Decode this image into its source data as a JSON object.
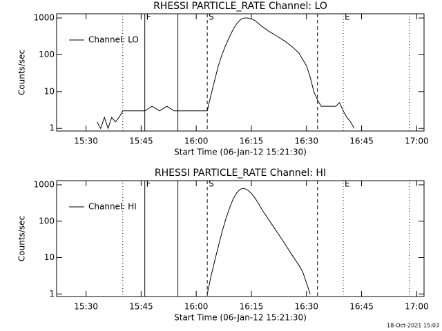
{
  "chart_data": [
    {
      "type": "line",
      "title": "RHESSI PARTICLE_RATE Channel: LO",
      "ylabel": "Counts/sec",
      "xlabel": "Start Time (06-Jan-12 15:21:30)",
      "log_y": true,
      "legend": "upper left",
      "ylim": [
        0.85,
        1300
      ],
      "yticks": [
        1,
        10,
        100,
        1000
      ],
      "xlim": [
        "15:22",
        "17:02"
      ],
      "xticks": [
        "15:30",
        "15:45",
        "16:00",
        "16:15",
        "16:30",
        "16:45",
        "17:00"
      ],
      "vlines": [
        {
          "x": "15:40",
          "style": "dotted"
        },
        {
          "x": "15:46",
          "style": "solid",
          "label": "F"
        },
        {
          "x": "15:55",
          "style": "solid"
        },
        {
          "x": "16:03",
          "style": "dashed",
          "label": "S"
        },
        {
          "x": "16:33",
          "style": "dashed"
        },
        {
          "x": "16:40",
          "style": "dotted",
          "label": "E"
        },
        {
          "x": "16:58",
          "style": "dotted"
        }
      ],
      "x": [
        "15:33",
        "15:34",
        "15:35",
        "15:36",
        "15:37",
        "15:38",
        "15:39",
        "15:40",
        "15:42",
        "15:44",
        "15:46",
        "15:48",
        "15:50",
        "15:52",
        "15:54",
        "15:56",
        "15:58",
        "16:00",
        "16:02",
        "16:03",
        "16:04",
        "16:05",
        "16:06",
        "16:07",
        "16:08",
        "16:09",
        "16:10",
        "16:11",
        "16:12",
        "16:13",
        "16:14",
        "16:15",
        "16:16",
        "16:17",
        "16:18",
        "16:20",
        "16:22",
        "16:24",
        "16:26",
        "16:28",
        "16:30",
        "16:31",
        "16:32",
        "16:33",
        "16:34",
        "16:36",
        "16:38",
        "16:39",
        "16:40",
        "16:41",
        "16:42",
        "16:43"
      ],
      "series": [
        {
          "name": "Channel: LO",
          "color": "#000000",
          "values": [
            1.5,
            1,
            2,
            1,
            2,
            1.5,
            2,
            3,
            3,
            3,
            3,
            4,
            3,
            4,
            3,
            3,
            3,
            3,
            3,
            3,
            8,
            20,
            50,
            100,
            180,
            300,
            480,
            700,
            900,
            1000,
            1000,
            950,
            850,
            700,
            580,
            420,
            320,
            240,
            170,
            110,
            50,
            25,
            10,
            6,
            4,
            4,
            4,
            5,
            3,
            2,
            1.5,
            1
          ]
        }
      ]
    },
    {
      "type": "line",
      "title": "RHESSI PARTICLE_RATE Channel: HI",
      "ylabel": "Counts/sec",
      "xlabel": "Start Time (06-Jan-12 15:21:30)",
      "log_y": true,
      "legend": "upper left",
      "ylim": [
        0.85,
        1300
      ],
      "yticks": [
        1,
        10,
        100,
        1000
      ],
      "xlim": [
        "15:22",
        "17:02"
      ],
      "xticks": [
        "15:30",
        "15:45",
        "16:00",
        "16:15",
        "16:30",
        "16:45",
        "17:00"
      ],
      "vlines": [
        {
          "x": "15:40",
          "style": "dotted"
        },
        {
          "x": "15:46",
          "style": "solid",
          "label": "F"
        },
        {
          "x": "15:55",
          "style": "solid"
        },
        {
          "x": "16:03",
          "style": "dashed",
          "label": "S"
        },
        {
          "x": "16:33",
          "style": "dashed"
        },
        {
          "x": "16:40",
          "style": "dotted",
          "label": "E"
        },
        {
          "x": "16:58",
          "style": "dotted"
        }
      ],
      "x": [
        "16:03",
        "16:04",
        "16:05",
        "16:06",
        "16:07",
        "16:08",
        "16:09",
        "16:10",
        "16:11",
        "16:12",
        "16:13",
        "16:14",
        "16:15",
        "16:16",
        "16:17",
        "16:18",
        "16:20",
        "16:22",
        "16:24",
        "16:26",
        "16:28",
        "16:29",
        "16:30",
        "16:31"
      ],
      "series": [
        {
          "name": "Channel: HI",
          "color": "#000000",
          "values": [
            1,
            3,
            8,
            20,
            50,
            110,
            220,
            400,
            600,
            760,
            800,
            720,
            580,
            430,
            300,
            200,
            100,
            50,
            25,
            12,
            6,
            4,
            2,
            1
          ]
        }
      ]
    }
  ],
  "footer": "18-Oct-2021 15:03"
}
